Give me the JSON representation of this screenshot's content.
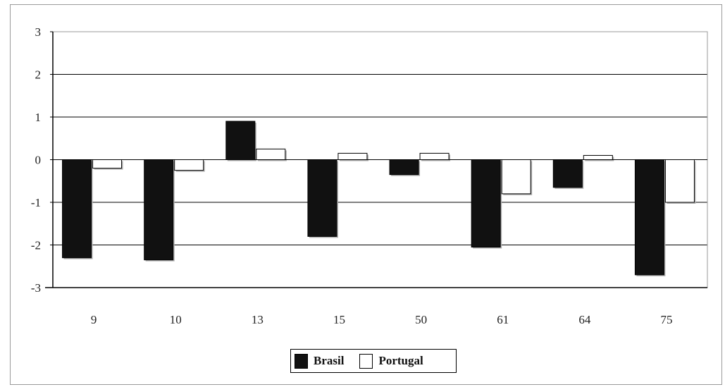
{
  "chart_data": {
    "type": "bar",
    "title": "",
    "xlabel": "",
    "ylabel": "",
    "categories": [
      "9",
      "10",
      "13",
      "15",
      "50",
      "61",
      "64",
      "75"
    ],
    "series": [
      {
        "name": "Brasil",
        "values": [
          -2.3,
          -2.35,
          0.9,
          -1.8,
          -0.35,
          -2.05,
          -0.65,
          -2.7
        ],
        "color": "#111111"
      },
      {
        "name": "Portugal",
        "values": [
          -0.2,
          -0.25,
          0.25,
          0.15,
          0.15,
          -0.8,
          0.1,
          -1.0
        ],
        "color": "#ffffff"
      }
    ],
    "ylim": [
      -3,
      3
    ],
    "yticks": [
      "3",
      "2",
      "1",
      "0",
      "-1",
      "-2",
      "-3"
    ],
    "grid": true,
    "legend_position": "bottom-center"
  }
}
